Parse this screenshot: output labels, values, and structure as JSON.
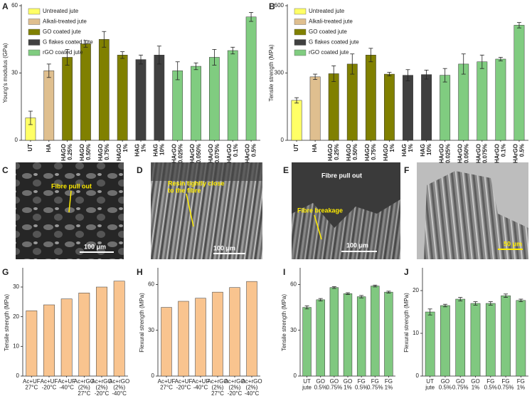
{
  "chart_data": [
    {
      "type": "bar",
      "panel": "A",
      "ylabel": "Young's modulus (GPa)",
      "categories": [
        [
          "UT"
        ],
        [
          "HA"
        ],
        [
          "HAGO",
          "0.25%"
        ],
        [
          "HAGO",
          "0.50%"
        ],
        [
          "HAGO",
          "0.75%"
        ],
        [
          "HAGO",
          "1%"
        ],
        [
          "HAG",
          "1%"
        ],
        [
          "HAG",
          "10%"
        ],
        [
          "HArGO",
          "0.025%"
        ],
        [
          "HArGO",
          "0.050%"
        ],
        [
          "HArGO",
          "0.075%"
        ],
        [
          "HArGO",
          "0.1%"
        ],
        [
          "HArGO",
          "0.5%"
        ]
      ],
      "values": [
        10,
        31,
        37,
        43,
        45,
        38,
        36,
        38,
        31,
        33,
        37,
        40,
        55
      ],
      "errors": [
        3,
        3,
        3.5,
        1.5,
        3.5,
        1.5,
        2,
        4,
        4,
        1.5,
        3.5,
        1.5,
        2
      ],
      "colors": [
        "#ffff66",
        "#dfbf8f",
        "#808000",
        "#808000",
        "#808000",
        "#808000",
        "#404040",
        "#404040",
        "#80cc80",
        "#80cc80",
        "#80cc80",
        "#80cc80",
        "#80cc80"
      ],
      "legend": [
        {
          "name": "Untreated jute",
          "color": "#ffff66"
        },
        {
          "name": "Alkali-treated jute",
          "color": "#dfbf8f"
        },
        {
          "name": "GO coated jute",
          "color": "#808000"
        },
        {
          "name": "G flakes coated jute",
          "color": "#404040"
        },
        {
          "name": "rGO coated jute",
          "color": "#80cc80"
        }
      ],
      "ylim": [
        0,
        60
      ],
      "yticks": [
        0,
        30,
        60
      ],
      "rotated_labels": true
    },
    {
      "type": "bar",
      "panel": "B",
      "ylabel": "Tensile strength (MPa)",
      "categories": [
        [
          "UT"
        ],
        [
          "HA"
        ],
        [
          "HAGO",
          "0.25%"
        ],
        [
          "HAGO",
          "0.50%"
        ],
        [
          "HAGO",
          "0.75%"
        ],
        [
          "HAGO",
          "1%"
        ],
        [
          "HAG",
          "1%"
        ],
        [
          "HAG",
          "10%"
        ],
        [
          "HArGO",
          "0.025%"
        ],
        [
          "HArGO",
          "0.050%"
        ],
        [
          "HArGO",
          "0.075%"
        ],
        [
          "HArGO",
          "0.1%"
        ],
        [
          "HArGO",
          "0.5%"
        ]
      ],
      "values": [
        178,
        283,
        297,
        340,
        380,
        295,
        290,
        293,
        290,
        340,
        350,
        362,
        513
      ],
      "errors": [
        12,
        12,
        35,
        45,
        30,
        8,
        25,
        20,
        30,
        45,
        30,
        8,
        12
      ],
      "colors": [
        "#ffff66",
        "#dfbf8f",
        "#808000",
        "#808000",
        "#808000",
        "#808000",
        "#404040",
        "#404040",
        "#80cc80",
        "#80cc80",
        "#80cc80",
        "#80cc80",
        "#80cc80"
      ],
      "legend": [
        {
          "name": "Untreated jute",
          "color": "#ffff66"
        },
        {
          "name": "Alkali-treated jute",
          "color": "#dfbf8f"
        },
        {
          "name": "GO coated jute",
          "color": "#808000"
        },
        {
          "name": "G flakes coated jute",
          "color": "#404040"
        },
        {
          "name": "rGO coated jute",
          "color": "#80cc80"
        }
      ],
      "ylim": [
        0,
        600
      ],
      "yticks": [
        0,
        300,
        600
      ],
      "rotated_labels": true
    },
    {
      "type": "bar",
      "panel": "G",
      "ylabel": "Tensile strength (MPa)",
      "categories": [
        [
          "Ac+UF",
          "27°C"
        ],
        [
          "Ac+UF",
          "-20°C"
        ],
        [
          "Ac+UF",
          "-40°C"
        ],
        [
          "Ac+rGO",
          "(2%)",
          "27°C"
        ],
        [
          "Ac+rGO",
          "(2%)",
          "-20°C"
        ],
        [
          "Ac+rGO",
          "(2%)",
          "-40°C"
        ]
      ],
      "values": [
        22,
        24,
        26,
        28,
        30,
        32
      ],
      "color": "#f9c48f",
      "ylim": [
        0,
        36
      ],
      "yticks": [
        0,
        10,
        20,
        30
      ]
    },
    {
      "type": "bar",
      "panel": "H",
      "ylabel": "Flexural strength (MPa)",
      "categories": [
        [
          "Ac+UF",
          "27°C"
        ],
        [
          "Ac+UF",
          "-20°C"
        ],
        [
          "Ac+UF",
          "-40°C"
        ],
        [
          "Ac+rGO",
          "(2%)",
          "27°C"
        ],
        [
          "Ac+rGO",
          "(2%)",
          "-20°C"
        ],
        [
          "Ac+rGO",
          "(2%)",
          "-40°C"
        ]
      ],
      "values": [
        45,
        49,
        51,
        55,
        58,
        62
      ],
      "color": "#f9c48f",
      "ylim": [
        0,
        70
      ],
      "yticks": [
        0,
        30,
        60
      ]
    },
    {
      "type": "bar",
      "panel": "I",
      "ylabel": "Tensile strength (MPa)",
      "categories": [
        [
          "UT",
          "jute"
        ],
        [
          "GO",
          "0.5%"
        ],
        [
          "GO",
          "0.75%"
        ],
        [
          "GO",
          "1%"
        ],
        [
          "FG",
          "0.5%"
        ],
        [
          "FG",
          "0.75%"
        ],
        [
          "FG",
          "1%"
        ]
      ],
      "values": [
        45,
        50,
        58,
        54,
        52,
        59,
        55
      ],
      "errors": [
        1,
        0.8,
        0.6,
        0.6,
        0.8,
        0.6,
        0.6
      ],
      "color": "#80c880",
      "ylim": [
        0,
        70
      ],
      "yticks": [
        0,
        30,
        60
      ]
    },
    {
      "type": "bar",
      "panel": "J",
      "ylabel": "Flexural strength (MPa)",
      "categories": [
        [
          "UT",
          "jute"
        ],
        [
          "GO",
          "0.5%"
        ],
        [
          "GO",
          "0.75%"
        ],
        [
          "GO",
          "1%"
        ],
        [
          "FG",
          "0.5%"
        ],
        [
          "FG",
          "0.75%"
        ],
        [
          "FG",
          "1%"
        ]
      ],
      "values": [
        15,
        16.5,
        18,
        17,
        17,
        18.8,
        17.7
      ],
      "errors": [
        0.7,
        0.3,
        0.4,
        0.4,
        0.4,
        0.4,
        0.3
      ],
      "color": "#80c880",
      "ylim": [
        0,
        25
      ],
      "yticks": [
        0,
        10,
        20
      ]
    }
  ],
  "micrographs": [
    {
      "panel": "C",
      "notes": [
        "Fibre pull out"
      ],
      "scale": "100 μm"
    },
    {
      "panel": "D",
      "notes": [
        "Resin tightly close",
        "to the fibre"
      ],
      "scale": "100 μm"
    },
    {
      "panel": "E",
      "notes": [
        "Fibre pull out",
        "Fibre breakage"
      ],
      "scale": "100 μm"
    },
    {
      "panel": "F",
      "scale": "50 μm"
    }
  ]
}
